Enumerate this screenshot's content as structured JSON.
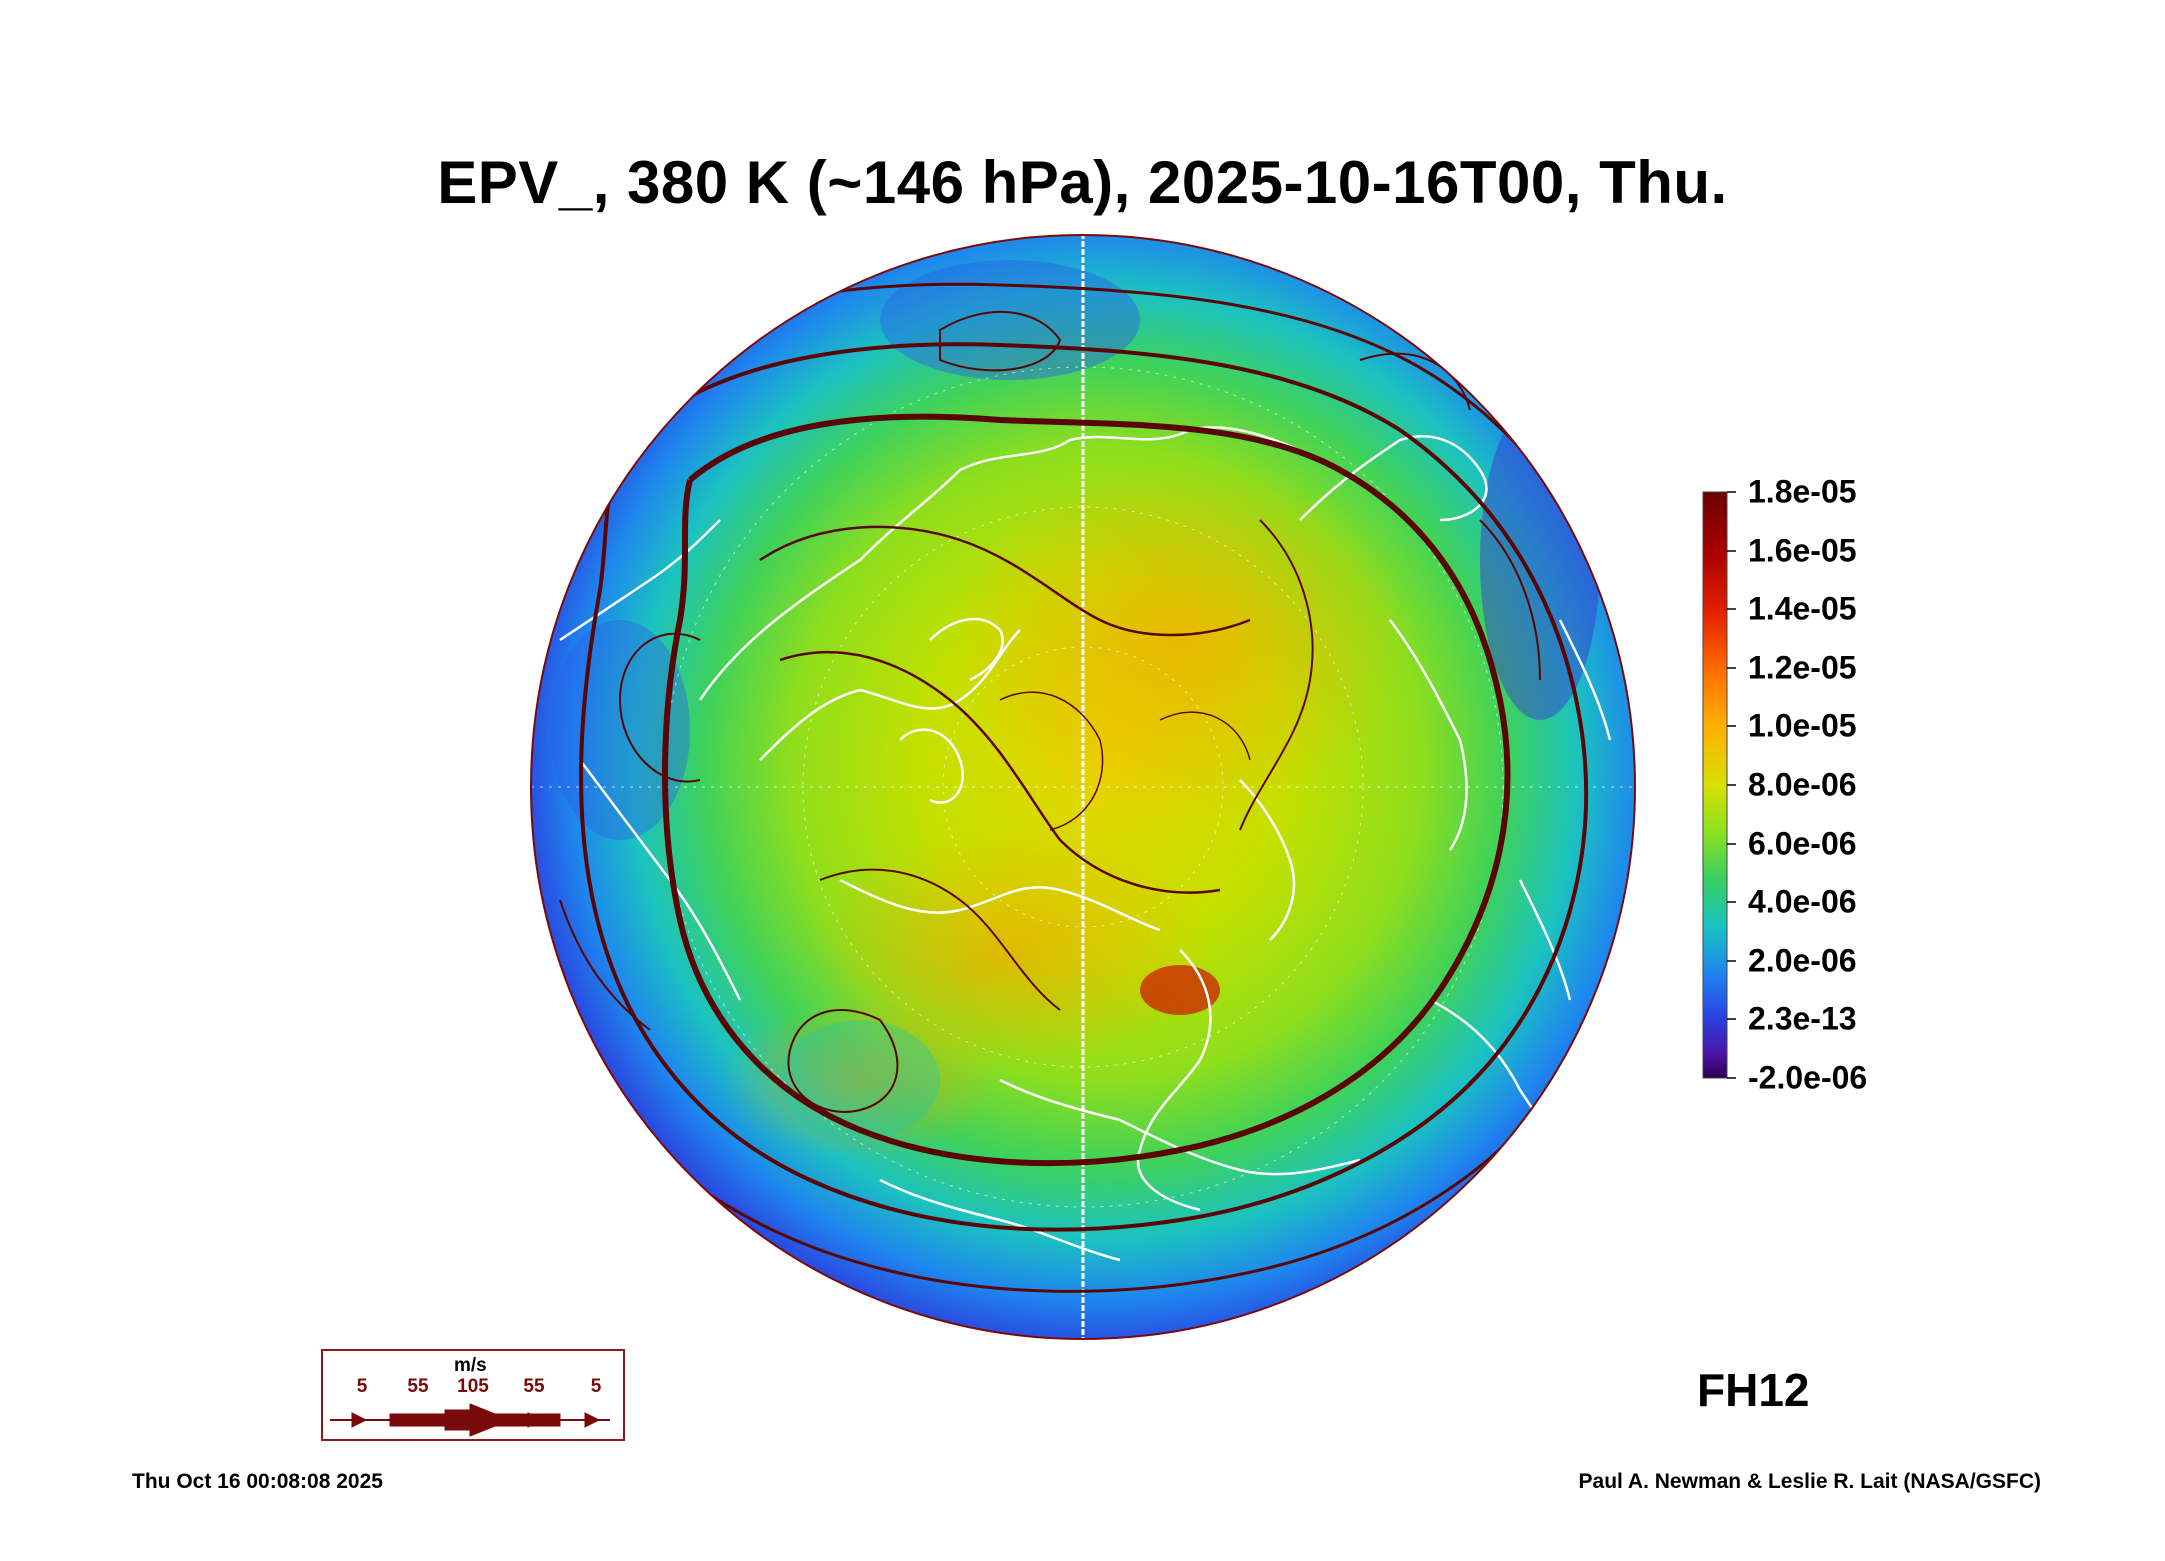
{
  "title": "EPV_, 380 K (~146 hPa), 2025-10-16T00, Thu.",
  "forecast_hour": "FH12",
  "timestamp": "Thu Oct 16 00:08:08 2025",
  "credit": "Paul A. Newman & Leslie R. Lait (NASA/GSFC)",
  "colorbar": {
    "labels": [
      "1.8e-05",
      "1.6e-05",
      "1.4e-05",
      "1.2e-05",
      "1.0e-05",
      "8.0e-06",
      "6.0e-06",
      "4.0e-06",
      "2.0e-06",
      "2.3e-13",
      "-2.0e-06"
    ],
    "colors": [
      "#6b0000",
      "#b80000",
      "#ff4400",
      "#ff9900",
      "#f2d600",
      "#b8e000",
      "#5ad23c",
      "#19c8b4",
      "#1f8ef0",
      "#2040e0",
      "#4a10a0",
      "#2a0050"
    ]
  },
  "wind_legend": {
    "unit": "m/s",
    "speeds": [
      "5",
      "55",
      "105",
      "55",
      "5"
    ],
    "arrow_color": "#7a0a0a"
  },
  "colors": {
    "streamline": "#5a0606",
    "coastline": "#ffffff"
  }
}
